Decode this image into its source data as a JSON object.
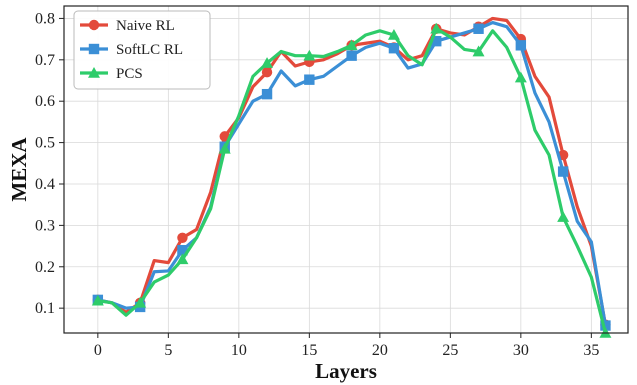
{
  "chart_data": {
    "type": "line",
    "xlabel": "Layers",
    "ylabel": "MEXA",
    "xlim": [
      -2.4,
      37.6
    ],
    "ylim": [
      0.04,
      0.83
    ],
    "xticks": [
      0,
      5,
      10,
      15,
      20,
      25,
      30,
      35
    ],
    "yticks": [
      0.1,
      0.2,
      0.3,
      0.4,
      0.5,
      0.6,
      0.7,
      0.8
    ],
    "grid": true,
    "legend_position": "top-left",
    "series": [
      {
        "name": "Naive RL",
        "color": "#e34a3b",
        "marker": "circle",
        "x": [
          0,
          1,
          2,
          3,
          4,
          5,
          6,
          7,
          8,
          9,
          10,
          11,
          12,
          13,
          14,
          15,
          16,
          17,
          18,
          19,
          20,
          21,
          22,
          23,
          24,
          25,
          26,
          27,
          28,
          29,
          30,
          31,
          32,
          33,
          34,
          35,
          36
        ],
        "y": [
          0.12,
          0.113,
          0.09,
          0.113,
          0.215,
          0.21,
          0.27,
          0.29,
          0.38,
          0.515,
          0.56,
          0.635,
          0.67,
          0.72,
          0.685,
          0.695,
          0.7,
          0.715,
          0.735,
          0.74,
          0.745,
          0.73,
          0.7,
          0.71,
          0.775,
          0.765,
          0.76,
          0.78,
          0.8,
          0.795,
          0.75,
          0.66,
          0.61,
          0.47,
          0.345,
          0.25,
          0.06
        ]
      },
      {
        "name": "SoftLC RL",
        "color": "#3b8fd6",
        "marker": "square",
        "x": [
          0,
          1,
          2,
          3,
          4,
          5,
          6,
          7,
          8,
          9,
          10,
          11,
          12,
          13,
          14,
          15,
          16,
          17,
          18,
          19,
          20,
          21,
          22,
          23,
          24,
          25,
          26,
          27,
          28,
          29,
          30,
          31,
          32,
          33,
          34,
          35,
          36
        ],
        "y": [
          0.12,
          0.113,
          0.1,
          0.103,
          0.188,
          0.19,
          0.24,
          0.27,
          0.345,
          0.49,
          0.545,
          0.6,
          0.617,
          0.673,
          0.637,
          0.652,
          0.66,
          0.685,
          0.71,
          0.73,
          0.74,
          0.728,
          0.68,
          0.69,
          0.745,
          0.755,
          0.765,
          0.775,
          0.79,
          0.78,
          0.735,
          0.62,
          0.55,
          0.43,
          0.31,
          0.26,
          0.058
        ]
      },
      {
        "name": "PCS",
        "color": "#2ecc6a",
        "marker": "triangle",
        "x": [
          0,
          1,
          2,
          3,
          4,
          5,
          6,
          7,
          8,
          9,
          10,
          11,
          12,
          13,
          14,
          15,
          16,
          17,
          18,
          19,
          20,
          21,
          22,
          23,
          24,
          25,
          26,
          27,
          28,
          29,
          30,
          31,
          32,
          33,
          34,
          35,
          36
        ],
        "y": [
          0.118,
          0.113,
          0.083,
          0.113,
          0.163,
          0.18,
          0.218,
          0.27,
          0.34,
          0.485,
          0.565,
          0.66,
          0.692,
          0.72,
          0.71,
          0.71,
          0.708,
          0.72,
          0.735,
          0.76,
          0.77,
          0.76,
          0.71,
          0.688,
          0.775,
          0.755,
          0.725,
          0.72,
          0.77,
          0.73,
          0.657,
          0.53,
          0.47,
          0.32,
          0.25,
          0.175,
          0.04
        ]
      }
    ]
  }
}
